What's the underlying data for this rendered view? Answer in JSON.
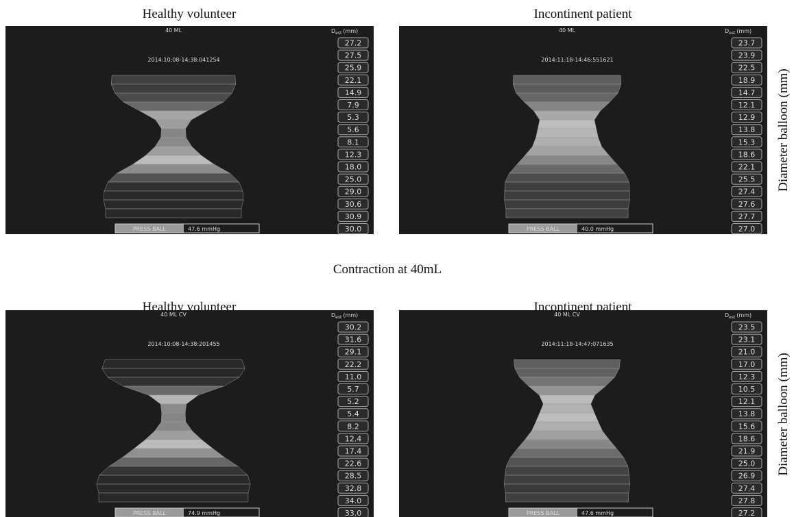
{
  "caption": "Contraction at 40mL",
  "side_labels": [
    "Diameter balloon (mm)",
    "Diameter balloon (mm)"
  ],
  "panels": [
    {
      "title": "Healthy volunteer",
      "header": "40 ML",
      "timestamp": "2014:10:08-14:38:041254",
      "unit": "D",
      "unit_sub": "est",
      "unit_suffix": "(mm)",
      "diameters": [
        "27.2",
        "27.5",
        "25.9",
        "22.1",
        "14.9",
        "7.9",
        "5.3",
        "5.6",
        "8.1",
        "12.3",
        "18.0",
        "25.0",
        "29.0",
        "30.6",
        "30.9",
        "30.0"
      ],
      "pressure_label": "PRESS BALL",
      "pressure_value": "47.6 mmHg"
    },
    {
      "title": "Incontinent patient",
      "header": "40 ML",
      "timestamp": "2014:11:18-14:46:551621",
      "unit": "D",
      "unit_sub": "est",
      "unit_suffix": "(mm)",
      "diameters": [
        "23.7",
        "23.9",
        "22.5",
        "18.9",
        "14.7",
        "12.1",
        "12.9",
        "13.8",
        "15.3",
        "18.6",
        "22.1",
        "25.5",
        "27.4",
        "27.6",
        "27.7",
        "27.0"
      ],
      "pressure_label": "PRESS BALL",
      "pressure_value": "40.0 mmHg"
    },
    {
      "title": "Healthy volunteer",
      "header": "40 ML CV",
      "timestamp": "2014:10:08-14:38:201455",
      "unit": "D",
      "unit_sub": "est",
      "unit_suffix": "(mm)",
      "diameters": [
        "30.2",
        "31.6",
        "29.1",
        "22.2",
        "11.0",
        "5.7",
        "5.2",
        "5.4",
        "8.2",
        "12.4",
        "17.4",
        "22.6",
        "28.5",
        "32.8",
        "34.0",
        "33.0"
      ],
      "pressure_label": "PRESS BALL",
      "pressure_value": "74.9 mmHg"
    },
    {
      "title": "Incontinent patient",
      "header": "40 ML CV",
      "timestamp": "2014:11:18-14:47:071635",
      "unit": "D",
      "unit_sub": "est",
      "unit_suffix": "(mm)",
      "diameters": [
        "23.5",
        "23.1",
        "21.0",
        "17.0",
        "12.3",
        "10.5",
        "12.1",
        "13.8",
        "15.6",
        "18.6",
        "21.9",
        "25.0",
        "26.9",
        "27.4",
        "27.8",
        "27.2"
      ],
      "pressure_label": "PRESS BALL",
      "pressure_value": "47.6 mmHg"
    }
  ]
}
